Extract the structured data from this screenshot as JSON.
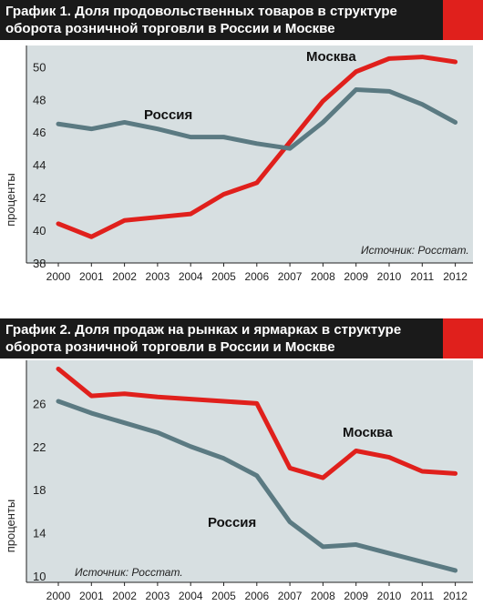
{
  "colors": {
    "moscow": "#e0201c",
    "russia": "#5b7a82",
    "background": "#d7dfe1",
    "title_bg": "#1a1a1a",
    "accent": "#e0201c"
  },
  "chart_data": [
    {
      "type": "line",
      "title": "График 1. Доля продовольственных товаров в структуре оборота розничной торговли в России и Москве",
      "ylabel": "проценты",
      "source": "Источник: Росстат.",
      "x": [
        "2000",
        "2001",
        "2002",
        "2003",
        "2004",
        "2005",
        "2006",
        "2007",
        "2008",
        "2009",
        "2010",
        "2011",
        "2012"
      ],
      "yticks": [
        "38",
        "40",
        "42",
        "44",
        "46",
        "48",
        "50"
      ],
      "ylim": [
        38,
        51.3
      ],
      "grid": false,
      "series": [
        {
          "name": "Москва",
          "values": [
            40.4,
            39.6,
            40.6,
            40.8,
            41.0,
            42.2,
            42.9,
            45.4,
            47.9,
            49.7,
            50.5,
            50.6,
            50.3
          ]
        },
        {
          "name": "Россия",
          "values": [
            46.5,
            46.2,
            46.6,
            46.2,
            45.7,
            45.7,
            45.3,
            45.0,
            46.6,
            48.6,
            48.5,
            47.7,
            46.6
          ]
        }
      ]
    },
    {
      "type": "line",
      "title": "График 2. Доля продаж на рынках и ярмарках в структуре оборота розничной торговли в России и Москве",
      "ylabel": "проценты",
      "source": "Источник: Росстат.",
      "x": [
        "2000",
        "2001",
        "2002",
        "2003",
        "2004",
        "2005",
        "2006",
        "2007",
        "2008",
        "2009",
        "2010",
        "2011",
        "2012"
      ],
      "yticks": [
        "10",
        "14",
        "18",
        "22",
        "26"
      ],
      "ylim": [
        9.4,
        30
      ],
      "grid": false,
      "series": [
        {
          "name": "Москва",
          "values": [
            29.2,
            26.7,
            26.9,
            26.6,
            26.4,
            26.2,
            26.0,
            20.0,
            19.1,
            21.6,
            21.0,
            19.7,
            19.5
          ]
        },
        {
          "name": "Россия",
          "values": [
            26.2,
            25.1,
            24.2,
            23.3,
            22.0,
            20.9,
            19.3,
            15.0,
            12.7,
            12.9,
            12.1,
            11.3,
            10.5
          ]
        }
      ]
    }
  ]
}
